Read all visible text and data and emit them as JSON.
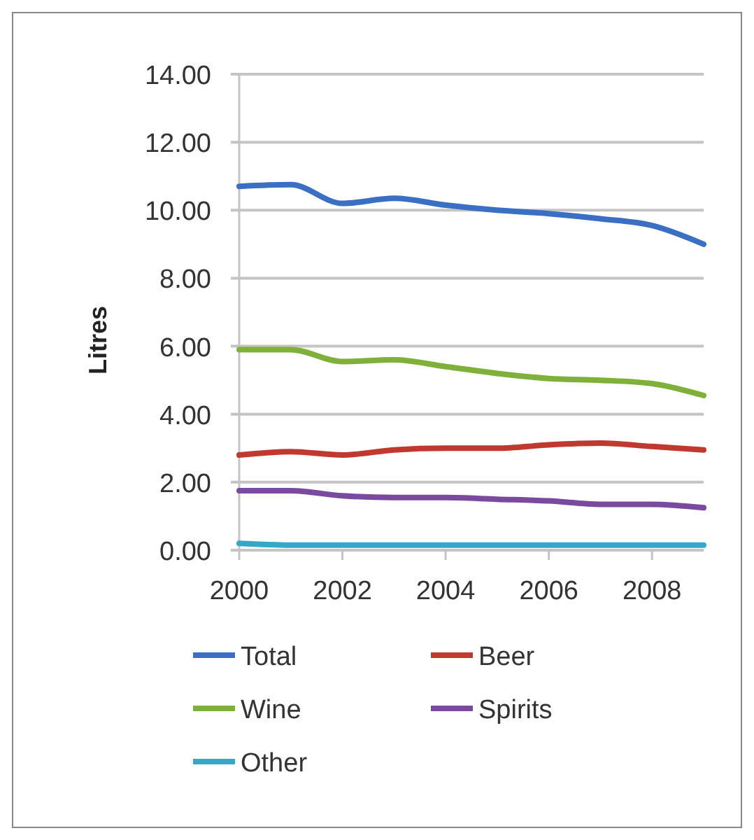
{
  "chart_data": {
    "type": "line",
    "ylabel": "Litres",
    "x": [
      2000,
      2001,
      2002,
      2003,
      2004,
      2005,
      2006,
      2007,
      2008,
      2009
    ],
    "xlim": [
      2000,
      2009
    ],
    "xticks": [
      2000,
      2002,
      2004,
      2006,
      2008
    ],
    "ylim": [
      0,
      14
    ],
    "yticks": [
      {
        "value": 0,
        "label": "0.00"
      },
      {
        "value": 2,
        "label": "2.00"
      },
      {
        "value": 4,
        "label": "4.00"
      },
      {
        "value": 6,
        "label": "6.00"
      },
      {
        "value": 8,
        "label": "8.00"
      },
      {
        "value": 10,
        "label": "10.00"
      },
      {
        "value": 12,
        "label": "12.00"
      },
      {
        "value": 14,
        "label": "14.00"
      }
    ],
    "grid": "y",
    "legend": "bottom",
    "marker": "none",
    "line_style": "solid",
    "series": [
      {
        "name": "Total",
        "color": "#3a6fc4",
        "values": [
          10.7,
          10.75,
          10.2,
          10.35,
          10.15,
          10.0,
          9.9,
          9.75,
          9.55,
          9.0
        ]
      },
      {
        "name": "Beer",
        "color": "#c0392f",
        "values": [
          2.8,
          2.9,
          2.8,
          2.95,
          3.0,
          3.0,
          3.1,
          3.15,
          3.05,
          2.95
        ]
      },
      {
        "name": "Wine",
        "color": "#7fb03a",
        "values": [
          5.9,
          5.9,
          5.55,
          5.6,
          5.4,
          5.2,
          5.05,
          5.0,
          4.9,
          4.55
        ]
      },
      {
        "name": "Spirits",
        "color": "#7a4a9e",
        "values": [
          1.75,
          1.75,
          1.6,
          1.55,
          1.55,
          1.5,
          1.45,
          1.35,
          1.35,
          1.25
        ]
      },
      {
        "name": "Other",
        "color": "#35a8c8",
        "values": [
          0.2,
          0.15,
          0.15,
          0.15,
          0.15,
          0.15,
          0.15,
          0.15,
          0.15,
          0.15
        ]
      }
    ]
  }
}
